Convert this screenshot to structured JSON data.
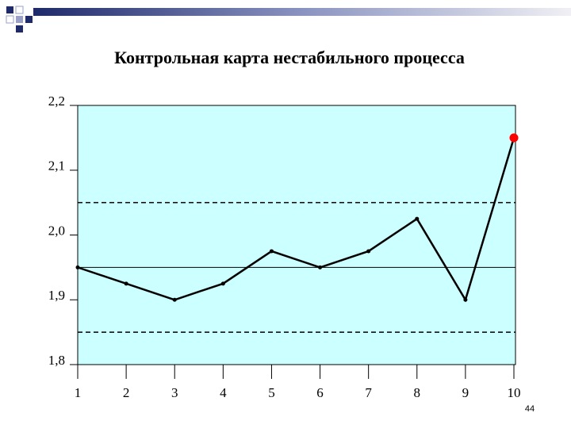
{
  "chart_data": {
    "type": "line",
    "title": "Контрольная карта нестабильного процесса",
    "categories": [
      "1",
      "2",
      "3",
      "4",
      "5",
      "6",
      "7",
      "8",
      "9",
      "10"
    ],
    "values": [
      1.95,
      1.925,
      1.9,
      1.925,
      1.975,
      1.95,
      1.975,
      2.025,
      1.9,
      2.15
    ],
    "color": "#000000",
    "highlight_color": "#ff0000",
    "highlight_index": 9,
    "background": "#ccffff",
    "center_line": 1.95,
    "ucl": 2.05,
    "lcl": 1.85,
    "ylim": [
      1.8,
      2.2
    ],
    "yticks": [
      {
        "value": 2.2,
        "label": "2,2"
      },
      {
        "value": 2.1,
        "label": "2,1"
      },
      {
        "value": 2.0,
        "label": "2,0"
      },
      {
        "value": 1.9,
        "label": "1,9"
      },
      {
        "value": 1.8,
        "label": "1,8"
      }
    ]
  },
  "page_number": "44"
}
